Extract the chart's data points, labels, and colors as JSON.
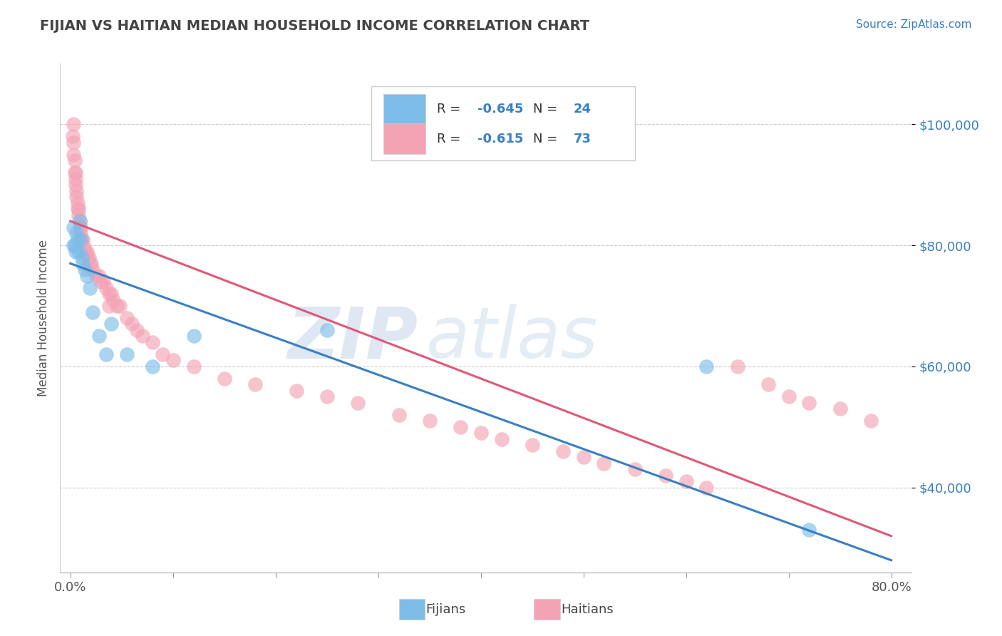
{
  "title": "FIJIAN VS HAITIAN MEDIAN HOUSEHOLD INCOME CORRELATION CHART",
  "source": "Source: ZipAtlas.com",
  "ylabel": "Median Household Income",
  "xlim": [
    -0.01,
    0.82
  ],
  "ylim": [
    26000,
    110000
  ],
  "yticks": [
    40000,
    60000,
    80000,
    100000
  ],
  "ytick_labels": [
    "$40,000",
    "$60,000",
    "$80,000",
    "$100,000"
  ],
  "fijian_color": "#7DBDE8",
  "haitian_color": "#F4A3B5",
  "fijian_line_color": "#3A7FC1",
  "haitian_line_color": "#E05878",
  "fijian_R": -0.645,
  "fijian_N": 24,
  "haitian_R": -0.615,
  "haitian_N": 73,
  "watermark_text": "ZIP",
  "watermark_text2": "atlas",
  "background_color": "#ffffff",
  "grid_color": "#cccccc",
  "title_color": "#444444",
  "source_color": "#3A7FC1",
  "fijian_line_x0": 0.0,
  "fijian_line_y0": 77000,
  "fijian_line_x1": 0.8,
  "fijian_line_y1": 28000,
  "haitian_line_x0": 0.0,
  "haitian_line_y0": 84000,
  "haitian_line_x1": 0.8,
  "haitian_line_y1": 32000,
  "fijian_x": [
    0.003,
    0.004,
    0.005,
    0.006,
    0.007,
    0.008,
    0.009,
    0.01,
    0.011,
    0.012,
    0.014,
    0.016,
    0.019,
    0.022,
    0.028,
    0.035,
    0.04,
    0.055,
    0.08,
    0.12,
    0.25,
    0.62,
    0.72,
    0.003
  ],
  "fijian_y": [
    83000,
    80000,
    79000,
    82000,
    81000,
    79000,
    84000,
    81000,
    78000,
    77000,
    76000,
    75000,
    73000,
    69000,
    65000,
    62000,
    67000,
    62000,
    60000,
    65000,
    66000,
    60000,
    33000,
    80000
  ],
  "haitian_x": [
    0.002,
    0.003,
    0.003,
    0.004,
    0.004,
    0.005,
    0.005,
    0.006,
    0.006,
    0.007,
    0.007,
    0.008,
    0.008,
    0.009,
    0.009,
    0.01,
    0.01,
    0.011,
    0.012,
    0.013,
    0.014,
    0.015,
    0.016,
    0.017,
    0.018,
    0.019,
    0.02,
    0.022,
    0.025,
    0.028,
    0.03,
    0.032,
    0.035,
    0.038,
    0.04,
    0.042,
    0.045,
    0.048,
    0.055,
    0.06,
    0.065,
    0.07,
    0.08,
    0.09,
    0.1,
    0.12,
    0.15,
    0.18,
    0.22,
    0.25,
    0.28,
    0.32,
    0.35,
    0.38,
    0.4,
    0.42,
    0.45,
    0.48,
    0.5,
    0.52,
    0.55,
    0.58,
    0.6,
    0.62,
    0.65,
    0.68,
    0.7,
    0.72,
    0.75,
    0.78,
    0.003,
    0.005,
    0.038
  ],
  "haitian_y": [
    98000,
    95000,
    97000,
    94000,
    92000,
    91000,
    90000,
    89000,
    88000,
    87000,
    86000,
    86000,
    85000,
    84000,
    83000,
    83000,
    82000,
    81000,
    81000,
    80000,
    79000,
    79000,
    79000,
    78000,
    78000,
    77000,
    77000,
    76000,
    75000,
    75000,
    74000,
    74000,
    73000,
    72000,
    72000,
    71000,
    70000,
    70000,
    68000,
    67000,
    66000,
    65000,
    64000,
    62000,
    61000,
    60000,
    58000,
    57000,
    56000,
    55000,
    54000,
    52000,
    51000,
    50000,
    49000,
    48000,
    47000,
    46000,
    45000,
    44000,
    43000,
    42000,
    41000,
    40000,
    60000,
    57000,
    55000,
    54000,
    53000,
    51000,
    100000,
    92000,
    70000
  ]
}
